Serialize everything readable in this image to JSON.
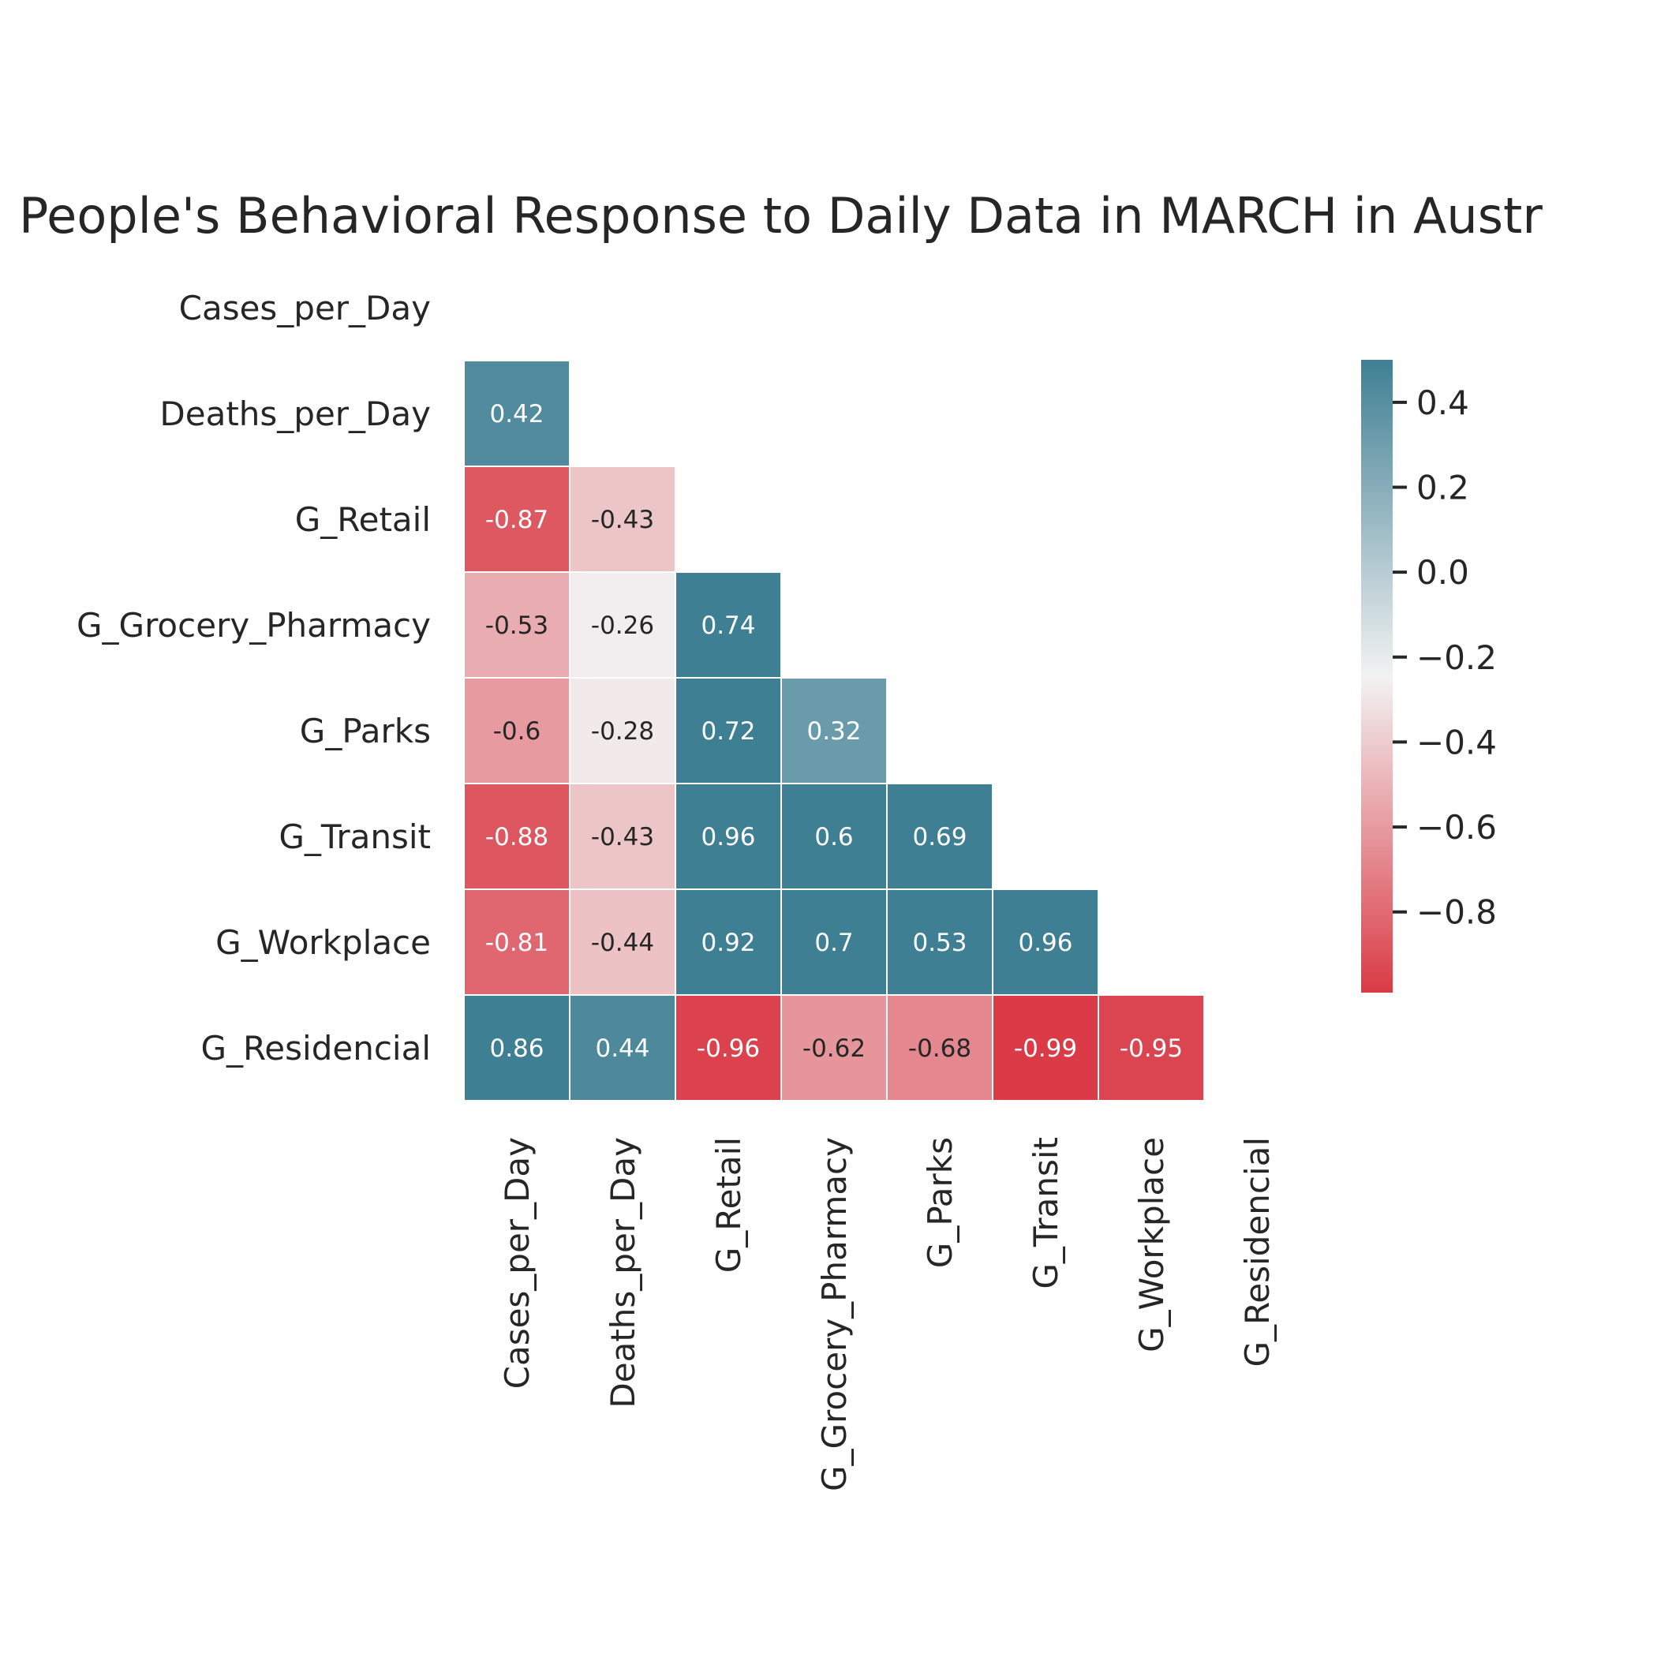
{
  "chart_data": {
    "type": "heatmap",
    "title": "People's Behavioral Response to Daily Data in MARCH in Austr",
    "variables": [
      "Cases_per_Day",
      "Deaths_per_Day",
      "G_Retail",
      "G_Grocery_Pharmacy",
      "G_Parks",
      "G_Transit",
      "G_Workplace",
      "G_Residencial"
    ],
    "mask": "upper-triangle-including-diagonal",
    "matrix": [
      [
        null,
        null,
        null,
        null,
        null,
        null,
        null,
        null
      ],
      [
        0.42,
        null,
        null,
        null,
        null,
        null,
        null,
        null
      ],
      [
        -0.87,
        -0.43,
        null,
        null,
        null,
        null,
        null,
        null
      ],
      [
        -0.53,
        -0.26,
        0.74,
        null,
        null,
        null,
        null,
        null
      ],
      [
        -0.6,
        -0.28,
        0.72,
        0.32,
        null,
        null,
        null,
        null
      ],
      [
        -0.88,
        -0.43,
        0.96,
        0.6,
        0.69,
        null,
        null,
        null
      ],
      [
        -0.81,
        -0.44,
        0.92,
        0.7,
        0.53,
        0.96,
        null,
        null
      ],
      [
        0.86,
        0.44,
        -0.96,
        -0.62,
        -0.68,
        -0.99,
        -0.95,
        null
      ]
    ],
    "colorbar": {
      "vmin": -0.99,
      "vmax": 0.5,
      "ticks": [
        0.4,
        0.2,
        0.0,
        -0.2,
        -0.4,
        -0.6,
        -0.8
      ],
      "tick_labels": [
        "0.4",
        "0.2",
        "0.0",
        "−0.2",
        "−0.4",
        "−0.6",
        "−0.8"
      ],
      "colors": {
        "low": "#da3b46",
        "mid": "#f2f2f2",
        "high": "#3f7f93"
      }
    }
  }
}
